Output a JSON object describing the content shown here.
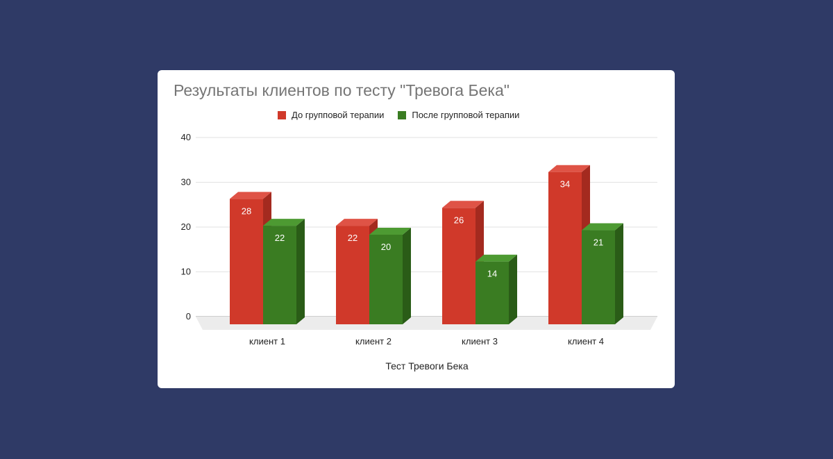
{
  "chart_data": {
    "type": "bar",
    "title": "Результаты клиентов по тесту \"Тревога Бека\"",
    "xlabel": "Тест Тревоги Бека",
    "ylabel": "",
    "categories": [
      "клиент 1",
      "клиент 2",
      "клиент 3",
      "клиент 4"
    ],
    "series": [
      {
        "name": "До групповой терапии",
        "color": "#d0392a",
        "side_color": "#a42a1f",
        "top_color": "#df5346",
        "values": [
          28,
          22,
          26,
          34
        ]
      },
      {
        "name": "После групповой терапии",
        "color": "#3a7c22",
        "side_color": "#2a5c17",
        "top_color": "#4d9a32",
        "values": [
          22,
          20,
          14,
          21
        ]
      }
    ],
    "ylim": [
      0,
      40
    ],
    "yticks": [
      0,
      10,
      20,
      30,
      40
    ],
    "grid": true,
    "legend_position": "top",
    "style": "3d-column"
  }
}
